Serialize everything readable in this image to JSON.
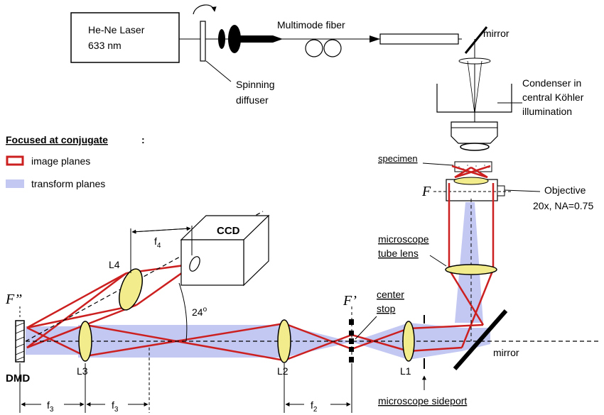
{
  "labels": {
    "laser_line1": "He-Ne Laser",
    "laser_line2": "633 nm",
    "multimode_fiber": "Multimode fiber",
    "mirror_top": "mirror",
    "spinning": "Spinning",
    "diffuser": "diffuser",
    "condenser_line1": "Condenser in",
    "condenser_line2": "central Köhler",
    "condenser_line3": "illumination",
    "legend_title": "Focused at conjugate",
    "legend_colon": ":",
    "legend_image_planes": "image planes",
    "legend_transform_planes": "transform planes",
    "specimen": "specimen",
    "objective_line1": "Objective",
    "objective_line2": "20x, NA=0.75",
    "tube_lens_line1": "microscope",
    "tube_lens_line2": "tube lens",
    "ccd": "CCD",
    "f4_base": "f",
    "f4_sub": "4",
    "l4": "L4",
    "angle": "24",
    "angle_sup": "o",
    "f_double_prime": "F”",
    "f_prime": "F’",
    "f_plain": "F",
    "center_stop_line1": "center",
    "center_stop_line2": "stop",
    "mirror_bottom": "mirror",
    "dmd": "DMD",
    "l3": "L3",
    "l2": "L2",
    "l1": "L1",
    "f3_base": "f",
    "f3_sub": "3",
    "f2_base": "f",
    "f2_sub": "2",
    "sideport": "microscope sideport"
  },
  "colors": {
    "image_planes": "#cc1f1f",
    "transform_planes": "#c3c8f2",
    "lens_fill": "#f2ec8c",
    "ink": "#000000"
  }
}
